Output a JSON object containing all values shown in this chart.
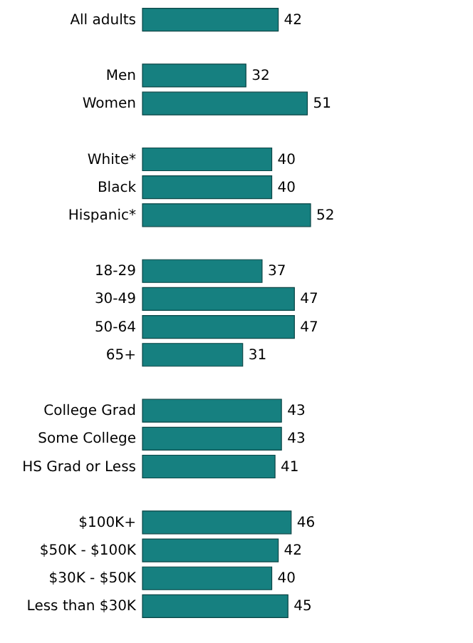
{
  "chart_data": {
    "type": "bar",
    "orientation": "horizontal",
    "categories": [
      "All adults",
      null,
      "Men",
      "Women",
      null,
      "White*",
      "Black",
      "Hispanic*",
      null,
      "18-29",
      "30-49",
      "50-64",
      "65+",
      null,
      "College Grad",
      "Some College",
      "HS Grad or Less",
      null,
      "$100K+",
      "$50K - $100K",
      "$30K - $50K",
      "Less than $30K"
    ],
    "values": [
      42,
      null,
      32,
      51,
      null,
      40,
      40,
      52,
      null,
      37,
      47,
      47,
      31,
      null,
      43,
      43,
      41,
      null,
      46,
      42,
      40,
      45
    ],
    "color": "#168080",
    "data_labels": true
  }
}
